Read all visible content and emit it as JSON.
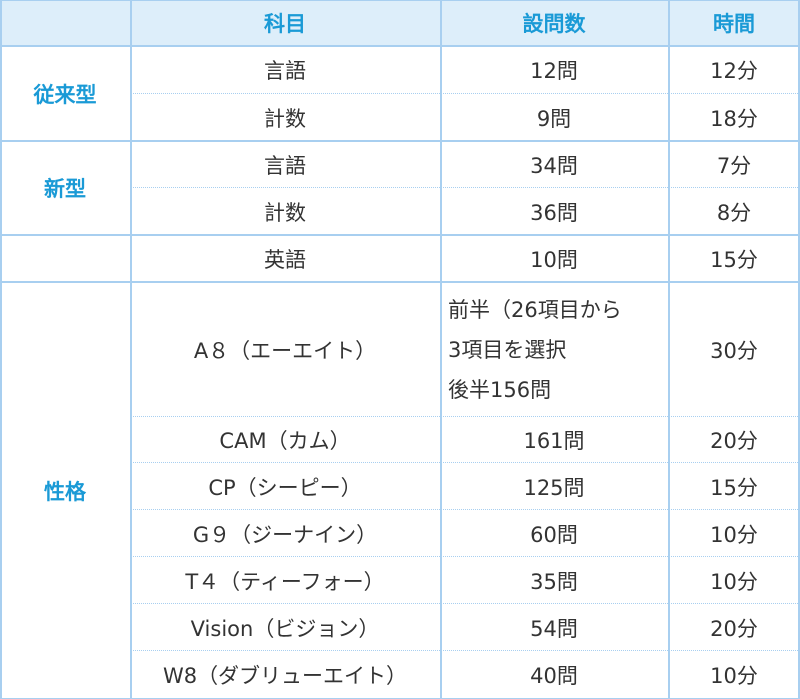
{
  "header": {
    "subject": "科目",
    "count": "設問数",
    "time": "時間"
  },
  "groups": [
    {
      "label": "従来型",
      "rows": [
        {
          "subject": "言語",
          "count": "12問",
          "time": "12分"
        },
        {
          "subject": "計数",
          "count": "9問",
          "time": "18分"
        }
      ]
    },
    {
      "label": "新型",
      "rows": [
        {
          "subject": "言語",
          "count": "34問",
          "time": "7分"
        },
        {
          "subject": "計数",
          "count": "36問",
          "time": "8分"
        }
      ]
    },
    {
      "rows": [
        {
          "subject": "英語",
          "count": "10問",
          "time": "15分"
        }
      ]
    },
    {
      "label": "性格",
      "rows": [
        {
          "subject": "A８（エーエイト）",
          "count_lines": [
            "前半（26項目から",
            "3項目を選択",
            "後半156問"
          ],
          "time": "30分"
        },
        {
          "subject": "CAM（カム）",
          "count": "161問",
          "time": "20分"
        },
        {
          "subject": "CP（シーピー）",
          "count": "125問",
          "time": "15分"
        },
        {
          "subject": "G９（ジーナイン）",
          "count": "60問",
          "time": "10分"
        },
        {
          "subject": "T４（ティーフォー）",
          "count": "35問",
          "time": "10分"
        },
        {
          "subject": "Vision（ビジョン）",
          "count": "54問",
          "time": "20分"
        },
        {
          "subject": "W8（ダブリューエイト）",
          "count": "40問",
          "time": "10分"
        }
      ]
    }
  ]
}
